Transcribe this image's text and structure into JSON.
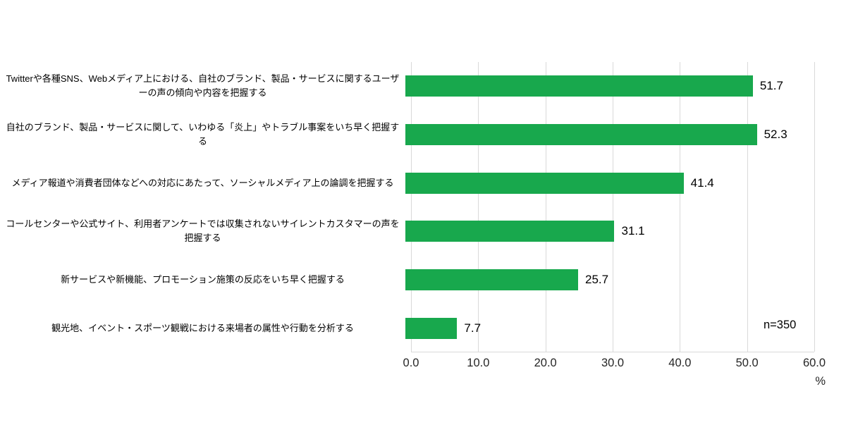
{
  "chart_data": {
    "type": "bar",
    "orientation": "horizontal",
    "title": "",
    "categories": [
      "Twitterや各種SNS、Webメディア上における、自社のブランド、製品・サービスに関するユーザーの声の傾向や内容を把握する",
      "自社のブランド、製品・サービスに関して、いわゆる「炎上」やトラブル事案をいち早く把握する",
      "メディア報道や消費者団体などへの対応にあたって、ソーシャルメディア上の論調を把握する",
      "コールセンターや公式サイト、利用者アンケートでは収集されないサイレントカスタマーの声を把握する",
      "新サービスや新機能、プロモーション施策の反応をいち早く把握する",
      "観光地、イベント・スポーツ観戦における来場者の属性や行動を分析する"
    ],
    "values": [
      51.7,
      52.3,
      41.4,
      31.1,
      25.7,
      7.7
    ],
    "value_labels": [
      "51.7",
      "52.3",
      "41.4",
      "31.1",
      "25.7",
      "7.7"
    ],
    "xlim": [
      0,
      60
    ],
    "ticks": [
      "0.0",
      "10.0",
      "20.0",
      "30.0",
      "40.0",
      "50.0",
      "60.0"
    ],
    "xlabel": "%",
    "annotation": "n=350",
    "bar_color": "#18A84D",
    "gridline_color": "#d9d9d9",
    "grid": true,
    "legend": false
  }
}
